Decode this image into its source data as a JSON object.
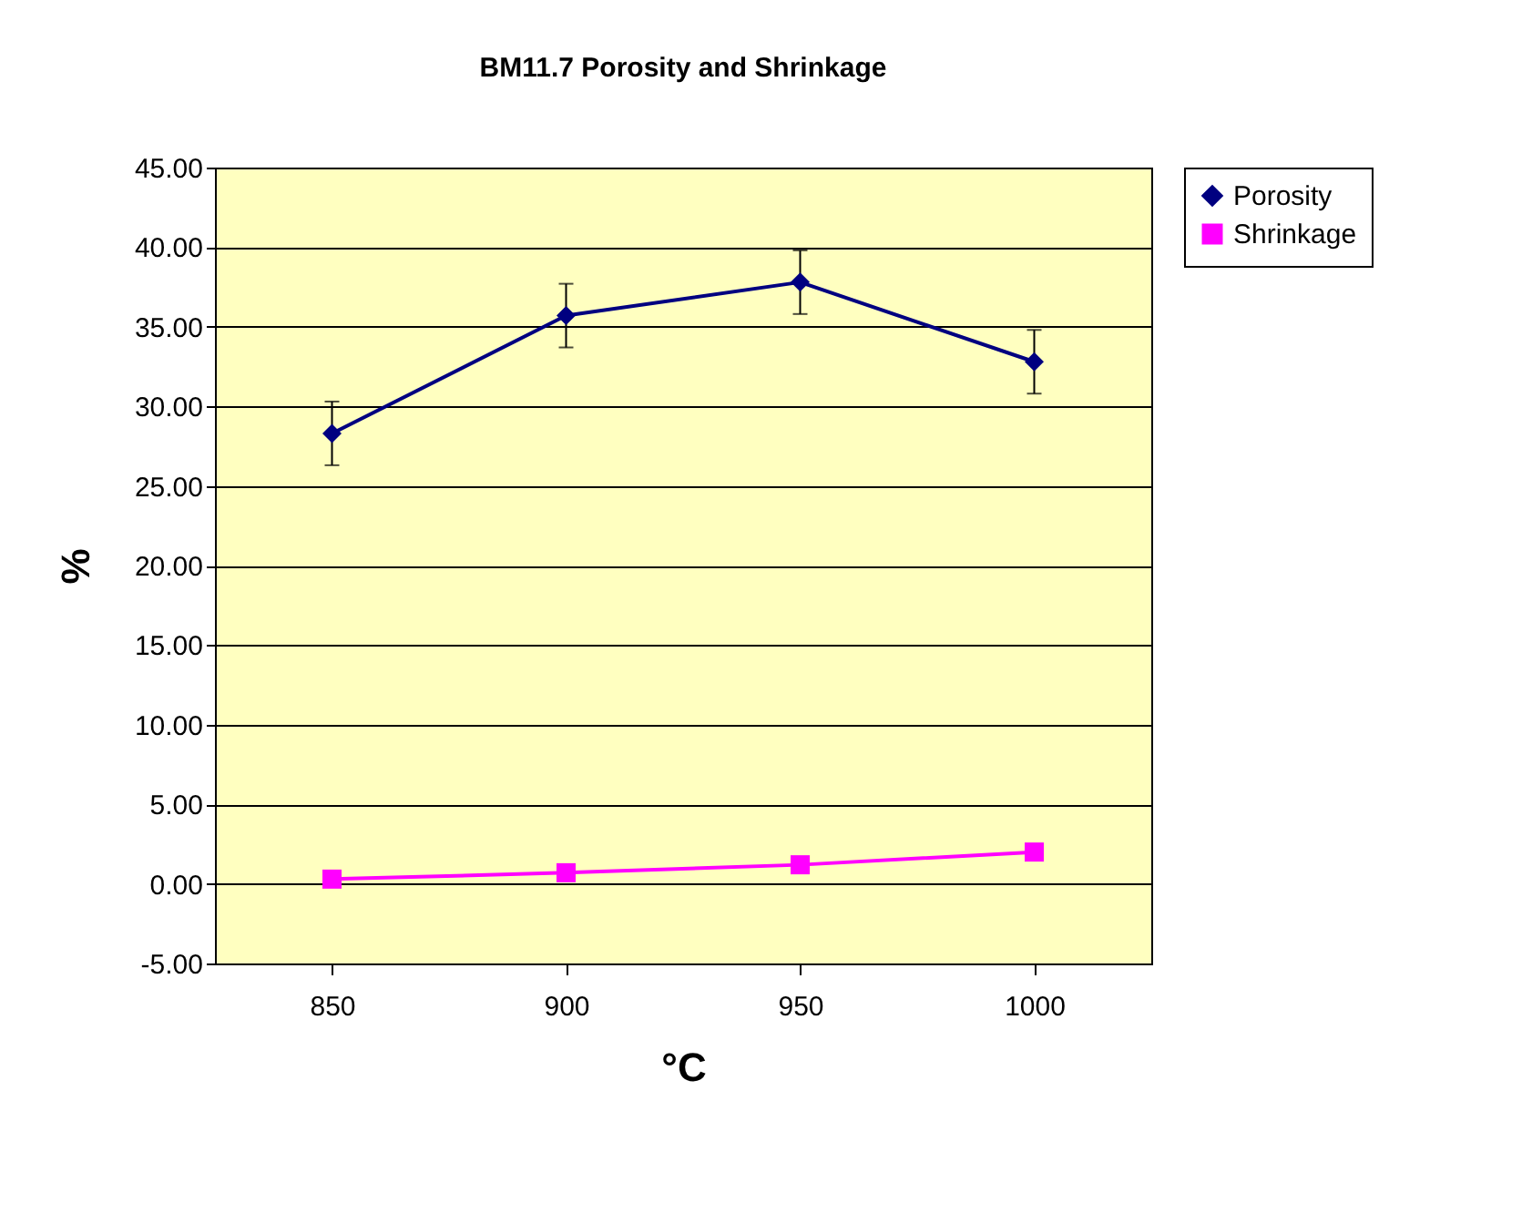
{
  "chart_data": {
    "type": "line",
    "title": "BM11.7 Porosity and Shrinkage",
    "xlabel": "°C",
    "ylabel": "%",
    "categories": [
      "850",
      "900",
      "950",
      "1000"
    ],
    "series": [
      {
        "name": "Porosity",
        "color": "#000080",
        "marker": "diamond",
        "values": [
          28.3,
          35.7,
          37.8,
          32.8
        ],
        "errors": [
          2,
          2,
          2,
          2
        ]
      },
      {
        "name": "Shrinkage",
        "color": "#ff00ff",
        "marker": "square",
        "values": [
          0.3,
          0.7,
          1.2,
          2.0
        ]
      }
    ],
    "ylim": [
      -5,
      45
    ],
    "yticks": [
      {
        "value": -5,
        "label": "-5.00"
      },
      {
        "value": 0,
        "label": "0.00"
      },
      {
        "value": 5,
        "label": "5.00"
      },
      {
        "value": 10,
        "label": "10.00"
      },
      {
        "value": 15,
        "label": "15.00"
      },
      {
        "value": 20,
        "label": "20.00"
      },
      {
        "value": 25,
        "label": "25.00"
      },
      {
        "value": 30,
        "label": "30.00"
      },
      {
        "value": 35,
        "label": "35.00"
      },
      {
        "value": 40,
        "label": "40.00"
      },
      {
        "value": 45,
        "label": "45.00"
      }
    ],
    "grid": "y",
    "legend": "right",
    "line_style": "solid"
  }
}
